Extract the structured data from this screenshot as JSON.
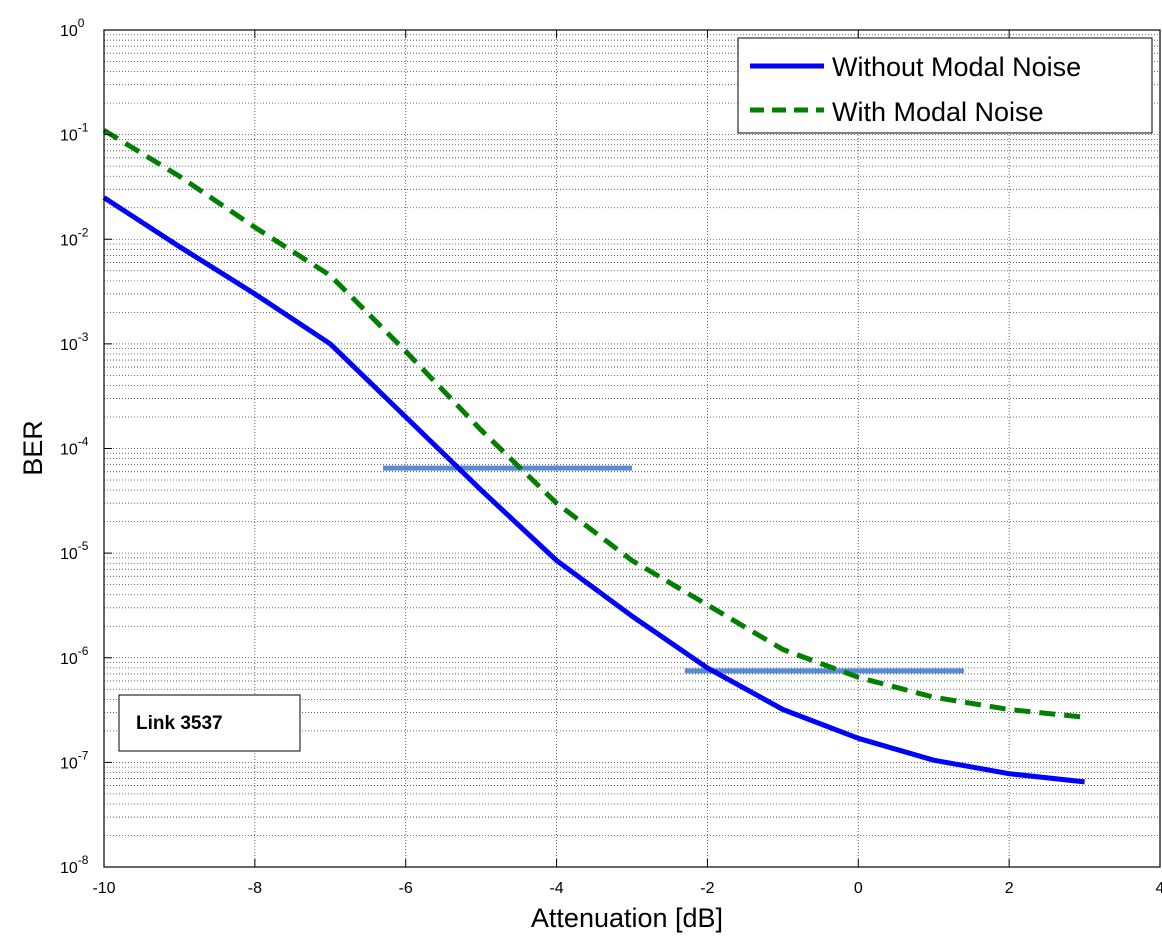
{
  "chart_data": {
    "type": "line",
    "xlabel": "Attenuation [dB]",
    "ylabel": "BER",
    "xlim": [
      -10,
      4
    ],
    "ylim": [
      1e-08,
      1
    ],
    "yscale": "log",
    "grid": "on (major and minor)",
    "legend_position": "top-right",
    "x_ticks": [
      -10,
      -8,
      -6,
      -4,
      -2,
      0,
      2,
      4
    ],
    "x_tick_labels": [
      "-10",
      "-8",
      "-6",
      "-4",
      "-2",
      "0",
      "2",
      "4"
    ],
    "y_ticks": [
      1e-08,
      1e-07,
      1e-06,
      1e-05,
      0.0001,
      0.001,
      0.01,
      0.1,
      1
    ],
    "y_tick_labels": [
      {
        "base": "10",
        "exp": "-8"
      },
      {
        "base": "10",
        "exp": "-7"
      },
      {
        "base": "10",
        "exp": "-6"
      },
      {
        "base": "10",
        "exp": "-5"
      },
      {
        "base": "10",
        "exp": "-4"
      },
      {
        "base": "10",
        "exp": "-3"
      },
      {
        "base": "10",
        "exp": "-2"
      },
      {
        "base": "10",
        "exp": "-1"
      },
      {
        "base": "10",
        "exp": "0"
      }
    ],
    "series": [
      {
        "name": "Without Modal Noise",
        "color": "#0000ff",
        "style": "solid",
        "x": [
          -10,
          -9,
          -8,
          -7,
          -6,
          -5,
          -4,
          -3,
          -2,
          -1,
          0,
          1,
          2,
          3
        ],
        "y": [
          0.025,
          0.0085,
          0.003,
          0.001,
          0.0002,
          4e-05,
          8.5e-06,
          2.5e-06,
          8e-07,
          3.2e-07,
          1.7e-07,
          1.05e-07,
          7.8e-08,
          6.5e-08
        ]
      },
      {
        "name": "With Modal Noise",
        "color": "#007f00",
        "style": "dashed",
        "x": [
          -10,
          -9,
          -8,
          -7,
          -6,
          -5,
          -4,
          -3,
          -2,
          -1,
          0,
          1,
          2,
          3
        ],
        "y": [
          0.11,
          0.04,
          0.013,
          0.0045,
          0.00085,
          0.00015,
          3e-05,
          8.5e-06,
          3.2e-06,
          1.2e-06,
          6.5e-07,
          4.2e-07,
          3.2e-07,
          2.7e-07
        ]
      }
    ],
    "reference_lines": [
      {
        "color": "#5a8ad2",
        "y": 6.5e-05,
        "x_start": -6.3,
        "x_end": -3.0
      },
      {
        "color": "#5a8ad2",
        "y": 7.5e-07,
        "x_start": -2.3,
        "x_end": 1.4
      }
    ],
    "annotation": {
      "text": "Link 3537"
    }
  }
}
